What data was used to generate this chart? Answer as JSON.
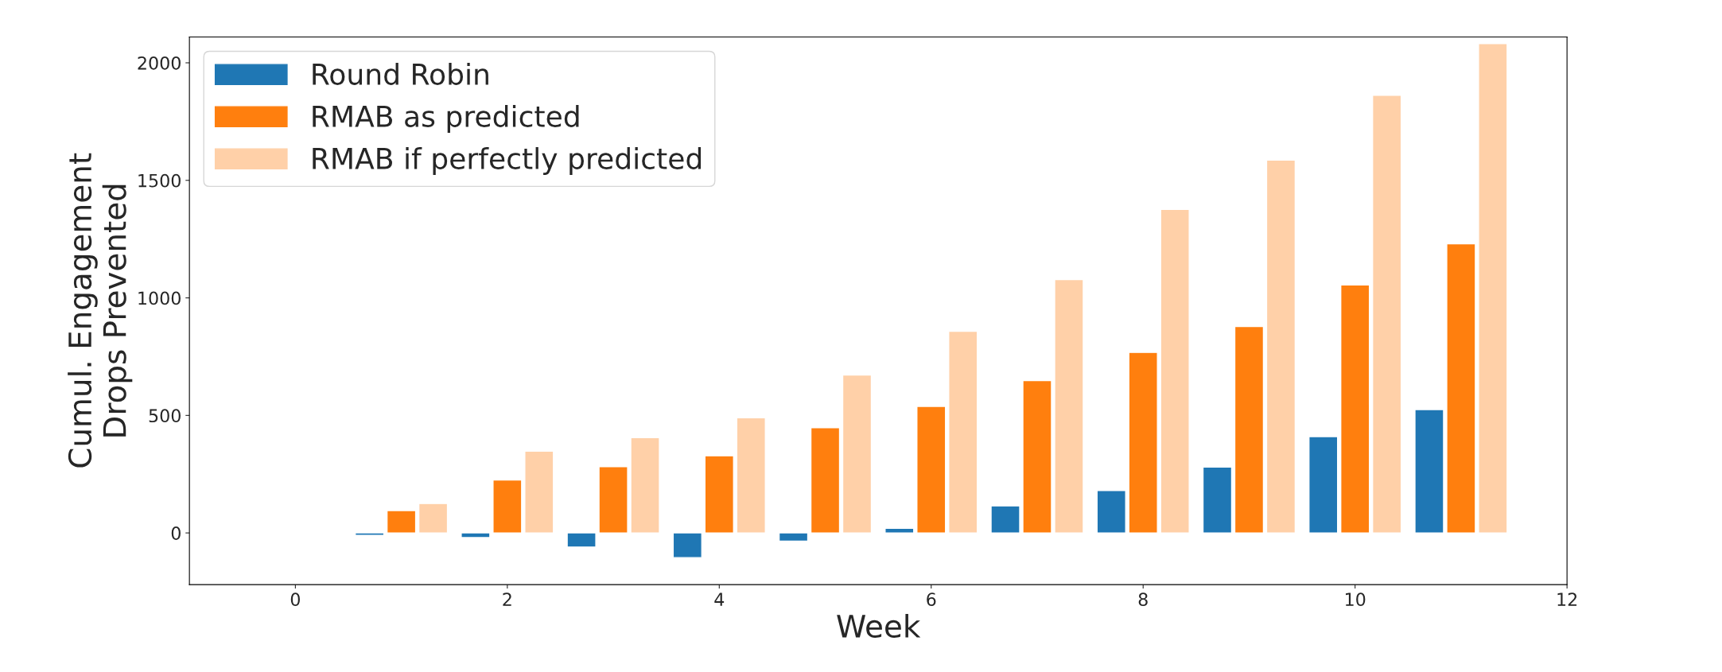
{
  "chart_data": {
    "type": "bar",
    "xlabel": "Week",
    "ylabel": "Cumul. Engagement\nDrops Prevented",
    "x": [
      1,
      2,
      3,
      4,
      5,
      6,
      7,
      8,
      9,
      10,
      11
    ],
    "series": [
      {
        "name": "Round Robin",
        "color": "#1f77b4",
        "values": [
          -10,
          -20,
          -60,
          -105,
          -35,
          20,
          115,
          180,
          280,
          410,
          525
        ]
      },
      {
        "name": "RMAB as predicted",
        "color": "#ff7f0e",
        "values": [
          95,
          225,
          282,
          328,
          448,
          538,
          648,
          768,
          878,
          1055,
          1230
        ]
      },
      {
        "name": "RMAB if perfectly predicted",
        "color": "#ffd0a8",
        "values": [
          125,
          348,
          405,
          490,
          672,
          858,
          1078,
          1376,
          1586,
          1862,
          2082
        ]
      }
    ],
    "xlim": [
      -1,
      12
    ],
    "xticks": [
      0,
      2,
      4,
      6,
      8,
      10,
      12
    ],
    "ylim": [
      -220,
      2110
    ],
    "yticks": [
      0,
      500,
      1000,
      1500,
      2000
    ],
    "grid": false,
    "legend": "top left"
  }
}
